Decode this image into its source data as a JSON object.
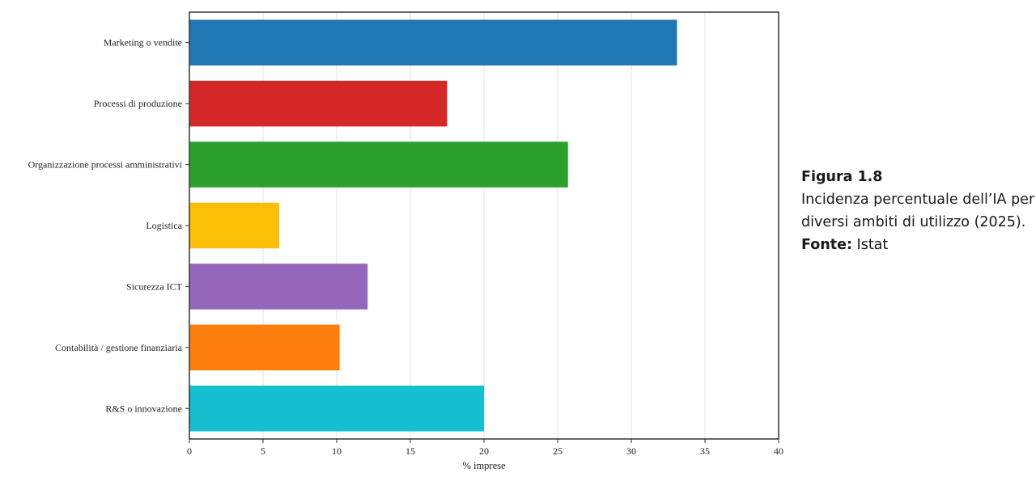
{
  "chart_data": {
    "type": "bar",
    "orientation": "horizontal",
    "categories": [
      "Marketing o vendite",
      "Processi di produzione",
      "Organizzazione processi amministrativi",
      "Logistica",
      "Sicurezza ICT",
      "Contabilità / gestione finanziaria",
      "R&S o innovazione"
    ],
    "values": [
      33.1,
      17.5,
      25.7,
      6.1,
      12.1,
      10.2,
      20.0
    ],
    "colors": [
      "#1f77b4",
      "#d62728",
      "#2ca02c",
      "#fcbf06",
      "#9467bd",
      "#ff7f0e",
      "#17becf"
    ],
    "xlabel": "% imprese",
    "ylabel": "",
    "xlim": [
      0,
      40
    ],
    "xticks": [
      0,
      5,
      10,
      15,
      20,
      25,
      30,
      35,
      40
    ],
    "grid": "vertical",
    "legend": "none"
  },
  "caption": {
    "figure_label": "Figura 1.8",
    "description": "Incidenza percentuale dell’IA per diversi ambiti di utilizzo (2025).",
    "source_label": "Fonte:",
    "source_value": "Istat"
  }
}
